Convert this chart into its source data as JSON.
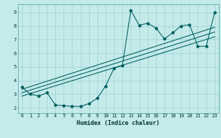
{
  "title": "",
  "xlabel": "Humidex (Indice chaleur)",
  "bg_color": "#c5eaea",
  "line_color": "#006060",
  "grid_color": "#9dcfcf",
  "xlim": [
    -0.5,
    23.5
  ],
  "ylim": [
    1.6,
    9.6
  ],
  "xticks": [
    0,
    1,
    2,
    3,
    4,
    5,
    6,
    7,
    8,
    9,
    10,
    11,
    12,
    13,
    14,
    15,
    16,
    17,
    18,
    19,
    20,
    21,
    22,
    23
  ],
  "yticks": [
    2,
    3,
    4,
    5,
    6,
    7,
    8,
    9
  ],
  "line1_x": [
    0,
    1,
    2,
    3,
    4,
    5,
    6,
    7,
    8,
    9,
    10,
    11,
    12,
    13,
    14,
    15,
    16,
    17,
    18,
    19,
    20,
    21,
    22,
    23
  ],
  "line1_y": [
    3.5,
    3.0,
    2.85,
    3.1,
    2.2,
    2.15,
    2.1,
    2.1,
    2.3,
    2.7,
    3.6,
    4.9,
    5.1,
    9.15,
    8.05,
    8.2,
    7.85,
    7.05,
    7.5,
    8.0,
    8.1,
    6.5,
    6.5,
    9.0
  ],
  "line2_x": [
    0,
    23
  ],
  "line2_y": [
    3.1,
    7.55
  ],
  "line3_x": [
    0,
    23
  ],
  "line3_y": [
    3.35,
    7.9
  ],
  "line4_x": [
    0,
    23
  ],
  "line4_y": [
    2.85,
    7.2
  ]
}
